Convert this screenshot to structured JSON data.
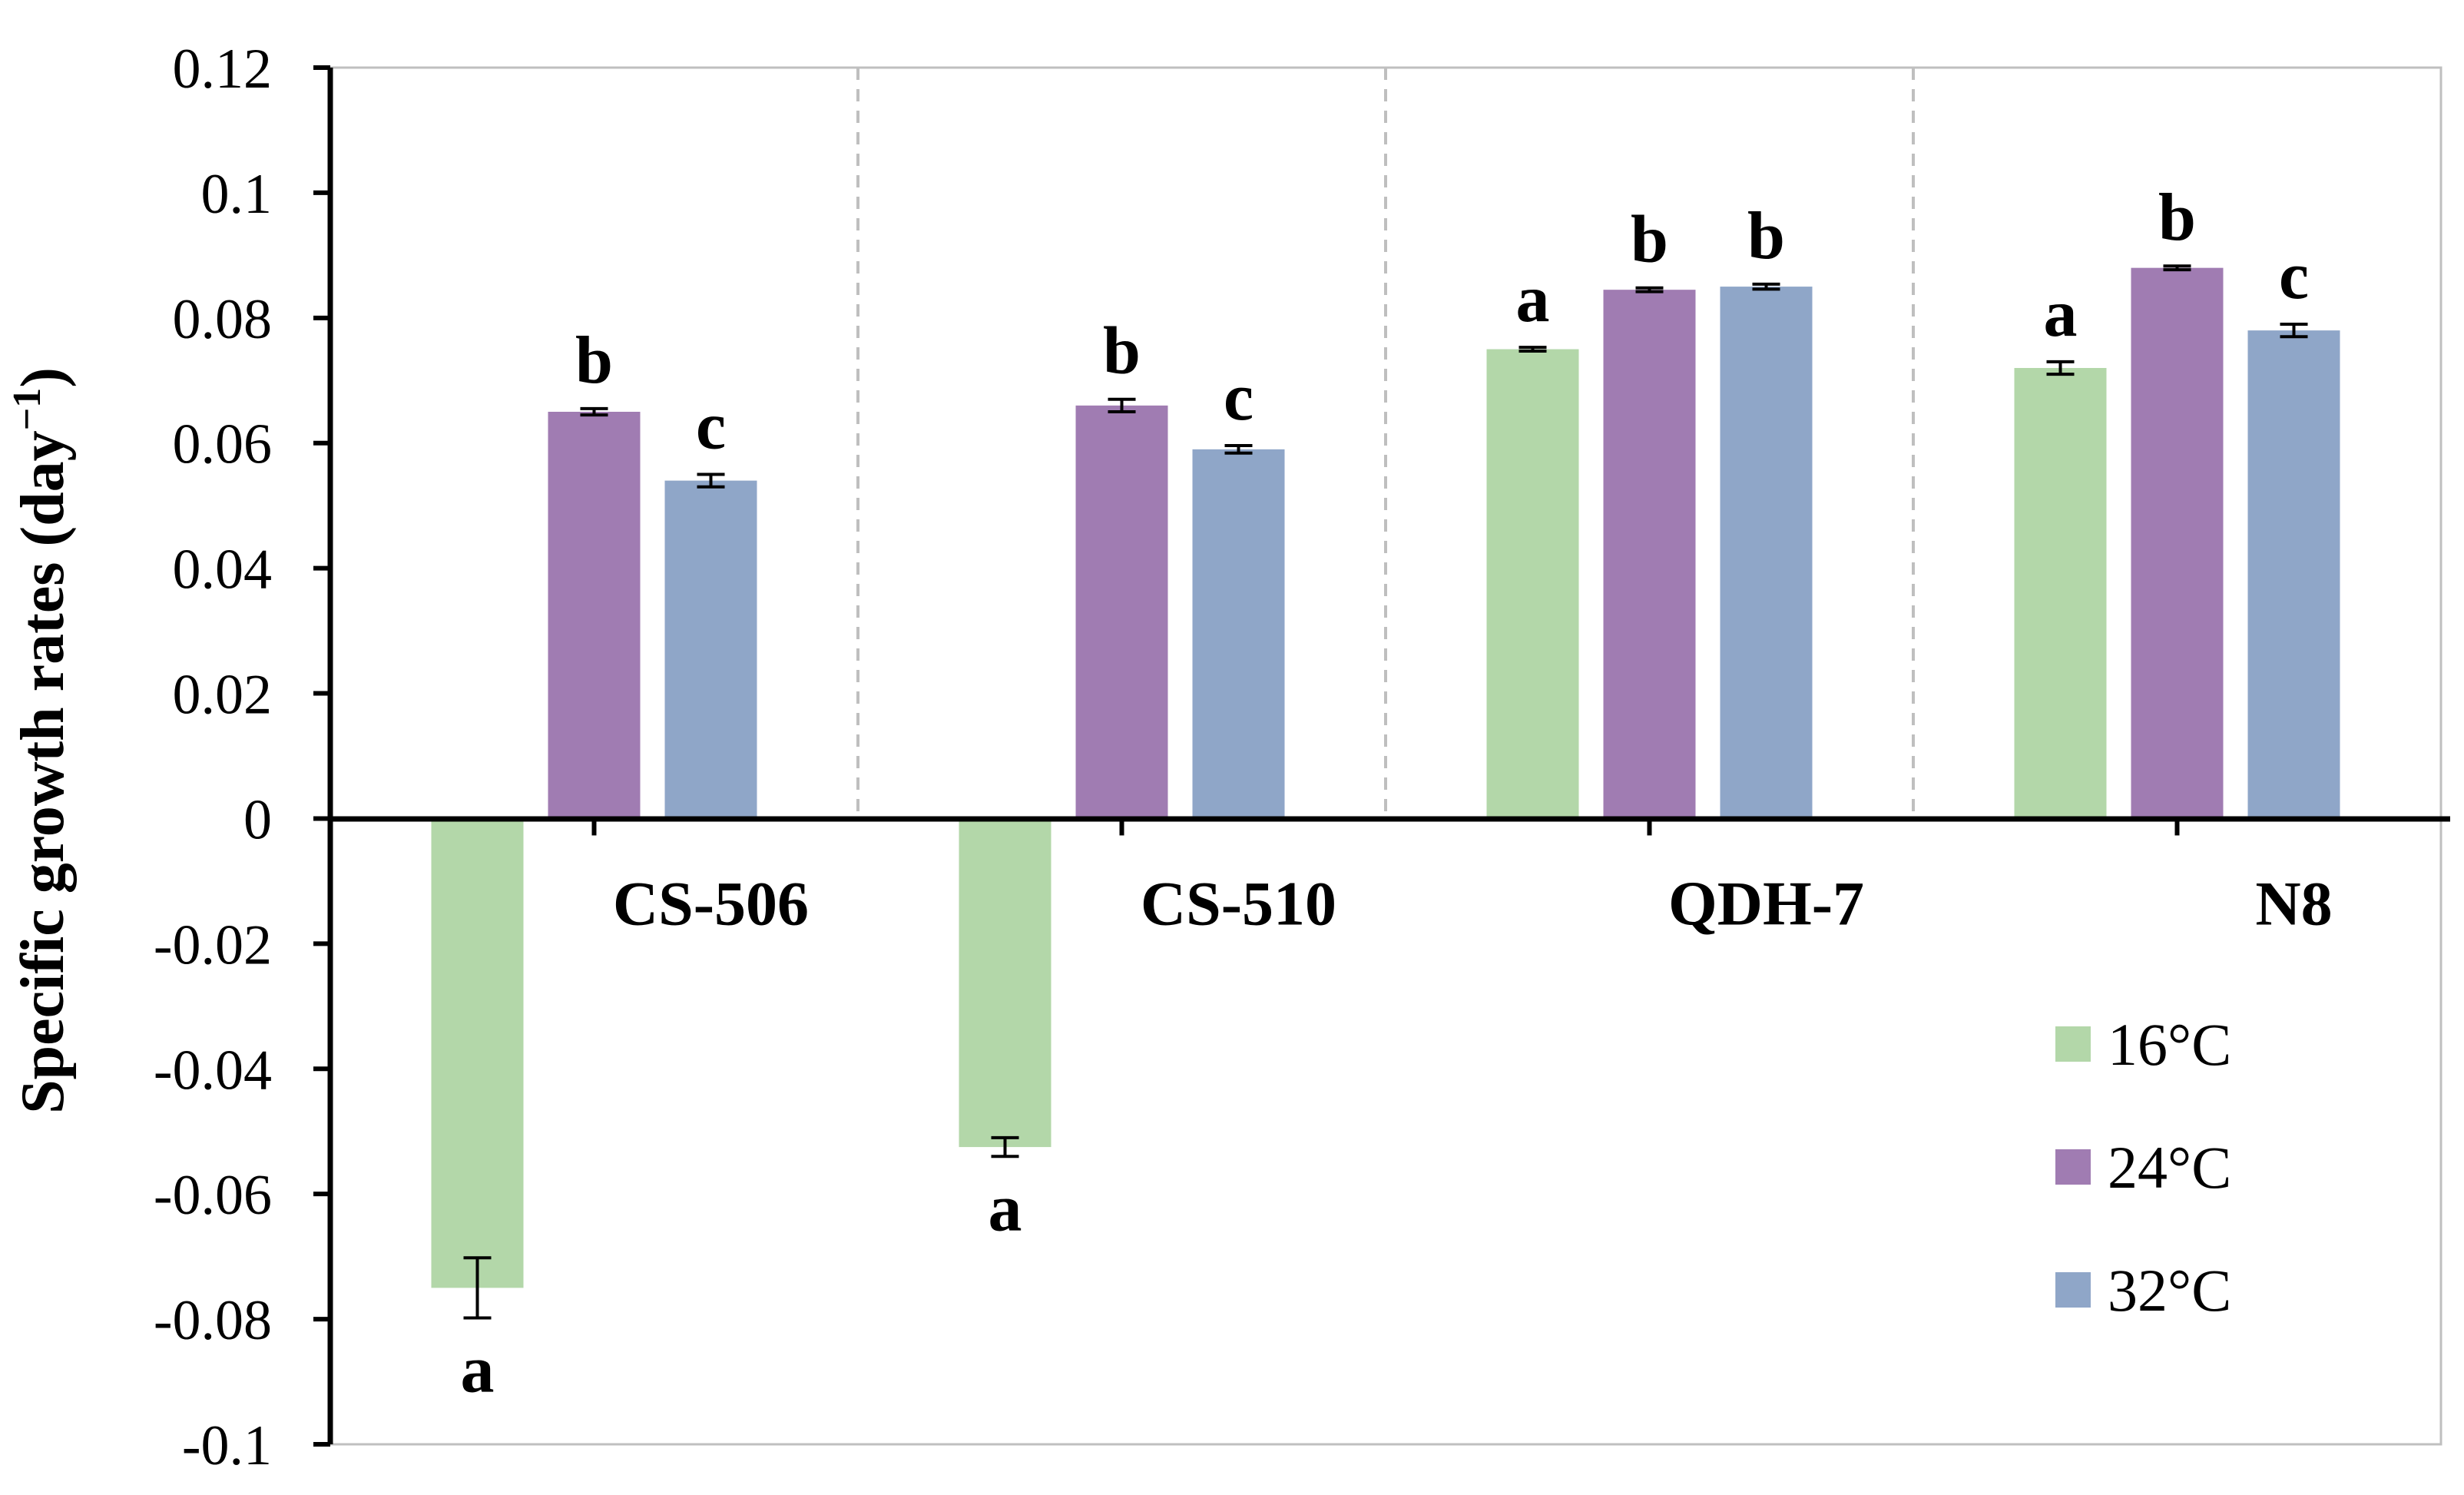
{
  "chart_data": {
    "type": "bar",
    "title": "",
    "xlabel": "",
    "ylabel": "Specific growth rates (day",
    "ylabel_superscript": "−1",
    "ylabel_suffix": ")",
    "ylim": [
      -0.1,
      0.12
    ],
    "ytick_values": [
      0.12,
      0.1,
      0.08,
      0.06,
      0.04,
      0.02,
      0,
      -0.02,
      -0.04,
      -0.06,
      -0.08,
      -0.1
    ],
    "ytick_labels": [
      "0.12",
      "0.1",
      "0.08",
      "0.06",
      "0.04",
      "0.02",
      "0",
      "-0.02",
      "-0.04",
      "-0.06",
      "-0.08",
      "-0.1"
    ],
    "categories": [
      "CS-506",
      "CS-510",
      "QDH-7",
      "N8"
    ],
    "series": [
      {
        "name": "16°C",
        "color": "#b3d7a9",
        "values": [
          -0.075,
          -0.0525,
          0.075,
          0.072
        ],
        "errors": [
          0.0048,
          0.0015,
          0.0003,
          0.001
        ],
        "letters": [
          "a",
          "a",
          "a",
          "a"
        ]
      },
      {
        "name": "24°C",
        "color": "#a07cb2",
        "values": [
          0.065,
          0.066,
          0.0845,
          0.088
        ],
        "errors": [
          0.0005,
          0.001,
          0.0003,
          0.0003
        ],
        "letters": [
          "b",
          "b",
          "b",
          "b"
        ]
      },
      {
        "name": "32°C",
        "color": "#8fa6c8",
        "values": [
          0.054,
          0.059,
          0.085,
          0.078
        ],
        "errors": [
          0.001,
          0.0006,
          0.0004,
          0.001
        ],
        "letters": [
          "c",
          "c",
          "b",
          "c"
        ]
      }
    ],
    "grid": false,
    "group_separators": "dashed vertical lines",
    "legend_position": "bottom-right"
  }
}
